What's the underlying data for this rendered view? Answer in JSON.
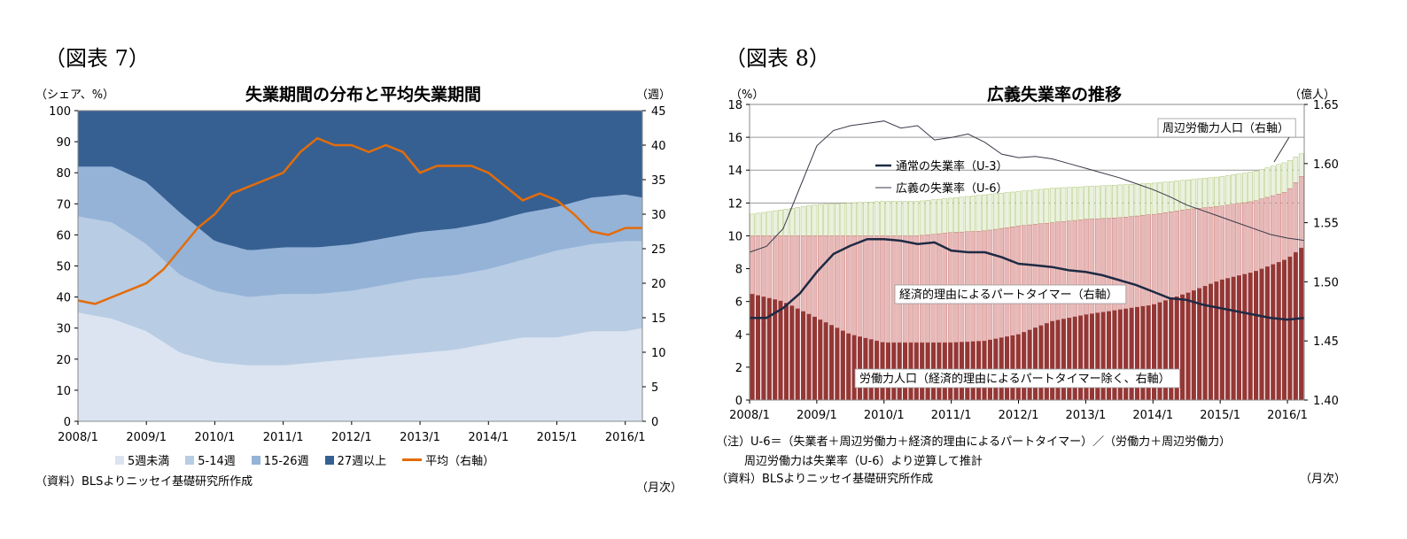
{
  "fig7": {
    "label": "（図表 7）",
    "title": "失業期間の分布と平均失業期間",
    "left_unit": "（シェア、%）",
    "right_unit": "（週）",
    "source": "（資料）BLSよりニッセイ基礎研究所作成",
    "xunit": "（月次）",
    "colors": {
      "lt5": "#dbe4f0",
      "w5_14": "#b8cce4",
      "w15_26": "#95b3d7",
      "w27plus": "#366092",
      "avg": "#e46c0a"
    },
    "legend": {
      "lt5": "5週未満",
      "w5_14": "5-14週",
      "w15_26": "15-26週",
      "w27plus": "27週以上",
      "avg": "平均（右軸）"
    }
  },
  "fig8": {
    "label": "（図表 8）",
    "title": "広義失業率の推移",
    "left_unit": "（%）",
    "right_unit": "（億人）",
    "note1": "（注）U-6＝（失業者＋周辺労働力＋経済的理由によるパートタイマー）／（労働力＋周辺労働力）",
    "note2": "周辺労働力は失業率（U-6）より逆算して推計",
    "source": "（資料）BLSよりニッセイ基礎研究所作成",
    "xunit": "（月次）",
    "ann_marginal": "周辺労働力人口（右軸）",
    "ann_u3": "通常の失業率（U-3）",
    "ann_u6": "広義の失業率（U-6）",
    "ann_part": "経済的理由によるパートタイマー（右軸）",
    "ann_labor": "労働力人口（経済的理由によるパートタイマー除く、右軸）",
    "colors": {
      "labor": "#953735",
      "part": "#e6b9b8",
      "marginal": "#ebf1de",
      "u3": "#1f2a44",
      "u6": "#3a3a4a"
    }
  },
  "chart_data": [
    {
      "type": "area",
      "x_ticks": [
        "2008/1",
        "2009/1",
        "2010/1",
        "2011/1",
        "2012/1",
        "2013/1",
        "2014/1",
        "2015/1",
        "2016/1"
      ],
      "x_range": [
        2008.0,
        2016.25
      ],
      "ylim": [
        0,
        100
      ],
      "yticks": [
        0,
        10,
        20,
        30,
        40,
        50,
        60,
        70,
        80,
        90,
        100
      ],
      "ylim_right": [
        0,
        45
      ],
      "yticks_right": [
        0,
        5,
        10,
        15,
        20,
        25,
        30,
        35,
        40,
        45
      ],
      "series": [
        {
          "name": "5週未満",
          "x": [
            2008.0,
            2008.5,
            2009.0,
            2009.5,
            2010.0,
            2010.5,
            2011.0,
            2011.5,
            2012.0,
            2012.5,
            2013.0,
            2013.5,
            2014.0,
            2014.5,
            2015.0,
            2015.5,
            2016.0,
            2016.25
          ],
          "values": [
            35,
            33,
            29,
            22,
            19,
            18,
            18,
            19,
            20,
            21,
            22,
            23,
            25,
            27,
            27,
            29,
            29,
            30
          ]
        },
        {
          "name": "5-14週",
          "x": [
            2008.0,
            2008.5,
            2009.0,
            2009.5,
            2010.0,
            2010.5,
            2011.0,
            2011.5,
            2012.0,
            2012.5,
            2013.0,
            2013.5,
            2014.0,
            2014.5,
            2015.0,
            2015.5,
            2016.0,
            2016.25
          ],
          "values": [
            66,
            64,
            57,
            47,
            42,
            40,
            41,
            41,
            42,
            44,
            46,
            47,
            49,
            52,
            55,
            57,
            58,
            58
          ]
        },
        {
          "name": "15-26週",
          "x": [
            2008.0,
            2008.5,
            2009.0,
            2009.5,
            2010.0,
            2010.5,
            2011.0,
            2011.5,
            2012.0,
            2012.5,
            2013.0,
            2013.5,
            2014.0,
            2014.5,
            2015.0,
            2015.5,
            2016.0,
            2016.25
          ],
          "values": [
            82,
            82,
            77,
            67,
            58,
            55,
            56,
            56,
            57,
            59,
            61,
            62,
            64,
            67,
            69,
            72,
            73,
            72
          ]
        },
        {
          "name": "27週以上",
          "x": [
            2008.0,
            2016.25
          ],
          "values": [
            100,
            100
          ]
        },
        {
          "name": "平均（右軸）",
          "axis": "right",
          "x": [
            2008.0,
            2008.25,
            2008.5,
            2008.75,
            2009.0,
            2009.25,
            2009.5,
            2009.75,
            2010.0,
            2010.25,
            2010.5,
            2010.75,
            2011.0,
            2011.25,
            2011.5,
            2011.75,
            2012.0,
            2012.25,
            2012.5,
            2012.75,
            2013.0,
            2013.25,
            2013.5,
            2013.75,
            2014.0,
            2014.25,
            2014.5,
            2014.75,
            2015.0,
            2015.25,
            2015.5,
            2015.75,
            2016.0,
            2016.25
          ],
          "values": [
            17.5,
            17,
            18,
            19,
            20,
            22,
            25,
            28,
            30,
            33,
            34,
            35,
            36,
            39,
            41,
            40,
            40,
            39,
            40,
            39,
            36,
            37,
            37,
            37,
            36,
            34,
            32,
            33,
            32,
            30,
            27.5,
            27,
            28,
            28
          ]
        }
      ]
    },
    {
      "type": "bar",
      "x_ticks": [
        "2008/1",
        "2009/1",
        "2010/1",
        "2011/1",
        "2012/1",
        "2013/1",
        "2014/1",
        "2015/1",
        "2016/1"
      ],
      "x_range": [
        2008.0,
        2016.25
      ],
      "ylim": [
        0,
        18
      ],
      "yticks": [
        0,
        2,
        4,
        6,
        8,
        10,
        12,
        14,
        16,
        18
      ],
      "ylim_right": [
        1.4,
        1.65
      ],
      "yticks_right": [
        "1.40",
        "1.45",
        "1.50",
        "1.55",
        "1.60",
        "1.65"
      ],
      "series": [
        {
          "name": "労働力人口（経済的理由によるパートタイマー除く、右軸）",
          "x": [
            2008.0,
            2008.5,
            2009.0,
            2009.5,
            2010.0,
            2010.5,
            2011.0,
            2011.5,
            2012.0,
            2012.5,
            2013.0,
            2013.5,
            2014.0,
            2014.5,
            2015.0,
            2015.5,
            2016.0,
            2016.25
          ],
          "values": [
            6.5,
            6.0,
            5.0,
            4.0,
            3.5,
            3.5,
            3.5,
            3.6,
            4.0,
            4.8,
            5.2,
            5.5,
            5.8,
            6.5,
            7.3,
            7.8,
            8.6,
            9.4
          ]
        },
        {
          "name": "経済的理由によるパートタイマー（右軸）",
          "x": [
            2008.0,
            2008.5,
            2009.0,
            2009.5,
            2010.0,
            2010.5,
            2011.0,
            2011.5,
            2012.0,
            2012.5,
            2013.0,
            2013.5,
            2014.0,
            2014.5,
            2015.0,
            2015.5,
            2016.0,
            2016.25
          ],
          "values": [
            10.0,
            10.0,
            10.0,
            10.0,
            10.0,
            10.0,
            10.2,
            10.3,
            10.6,
            10.8,
            11.0,
            11.1,
            11.3,
            11.6,
            11.8,
            12.1,
            12.7,
            13.8
          ]
        },
        {
          "name": "周辺労働力人口（右軸）",
          "x": [
            2008.0,
            2008.5,
            2009.0,
            2009.5,
            2010.0,
            2010.5,
            2011.0,
            2011.5,
            2012.0,
            2012.5,
            2013.0,
            2013.5,
            2014.0,
            2014.5,
            2015.0,
            2015.5,
            2016.0,
            2016.25
          ],
          "values": [
            11.3,
            11.6,
            11.9,
            12.0,
            12.1,
            12.1,
            12.3,
            12.5,
            12.7,
            12.9,
            13.0,
            13.1,
            13.2,
            13.4,
            13.6,
            13.9,
            14.5,
            15.1
          ]
        },
        {
          "name": "通常の失業率（U-3）",
          "x": [
            2008.0,
            2008.25,
            2008.5,
            2008.75,
            2009.0,
            2009.25,
            2009.5,
            2009.75,
            2010.0,
            2010.25,
            2010.5,
            2010.75,
            2011.0,
            2011.25,
            2011.5,
            2011.75,
            2012.0,
            2012.25,
            2012.5,
            2012.75,
            2013.0,
            2013.25,
            2013.5,
            2013.75,
            2014.0,
            2014.25,
            2014.5,
            2014.75,
            2015.0,
            2015.25,
            2015.5,
            2015.75,
            2016.0,
            2016.25
          ],
          "values": [
            5.0,
            5.0,
            5.6,
            6.5,
            7.8,
            8.9,
            9.4,
            9.8,
            9.8,
            9.7,
            9.5,
            9.6,
            9.1,
            9.0,
            9.0,
            8.7,
            8.3,
            8.2,
            8.1,
            7.9,
            7.8,
            7.6,
            7.3,
            7.0,
            6.6,
            6.2,
            6.1,
            5.8,
            5.6,
            5.4,
            5.2,
            5.0,
            4.9,
            5.0
          ]
        },
        {
          "name": "広義の失業率（U-6）",
          "axis": "right",
          "x": [
            2008.0,
            2008.25,
            2008.5,
            2008.75,
            2009.0,
            2009.25,
            2009.5,
            2009.75,
            2010.0,
            2010.25,
            2010.5,
            2010.75,
            2011.0,
            2011.25,
            2011.5,
            2011.75,
            2012.0,
            2012.25,
            2012.5,
            2012.75,
            2013.0,
            2013.25,
            2013.5,
            2013.75,
            2014.0,
            2014.25,
            2014.5,
            2014.75,
            2015.0,
            2015.25,
            2015.5,
            2015.75,
            2016.0,
            2016.25
          ],
          "values": [
            1.525,
            1.53,
            1.545,
            1.58,
            1.615,
            1.628,
            1.632,
            1.634,
            1.636,
            1.63,
            1.632,
            1.62,
            1.622,
            1.625,
            1.618,
            1.608,
            1.605,
            1.606,
            1.604,
            1.6,
            1.596,
            1.592,
            1.588,
            1.583,
            1.578,
            1.572,
            1.565,
            1.56,
            1.555,
            1.55,
            1.545,
            1.54,
            1.537,
            1.535
          ]
        }
      ]
    }
  ]
}
